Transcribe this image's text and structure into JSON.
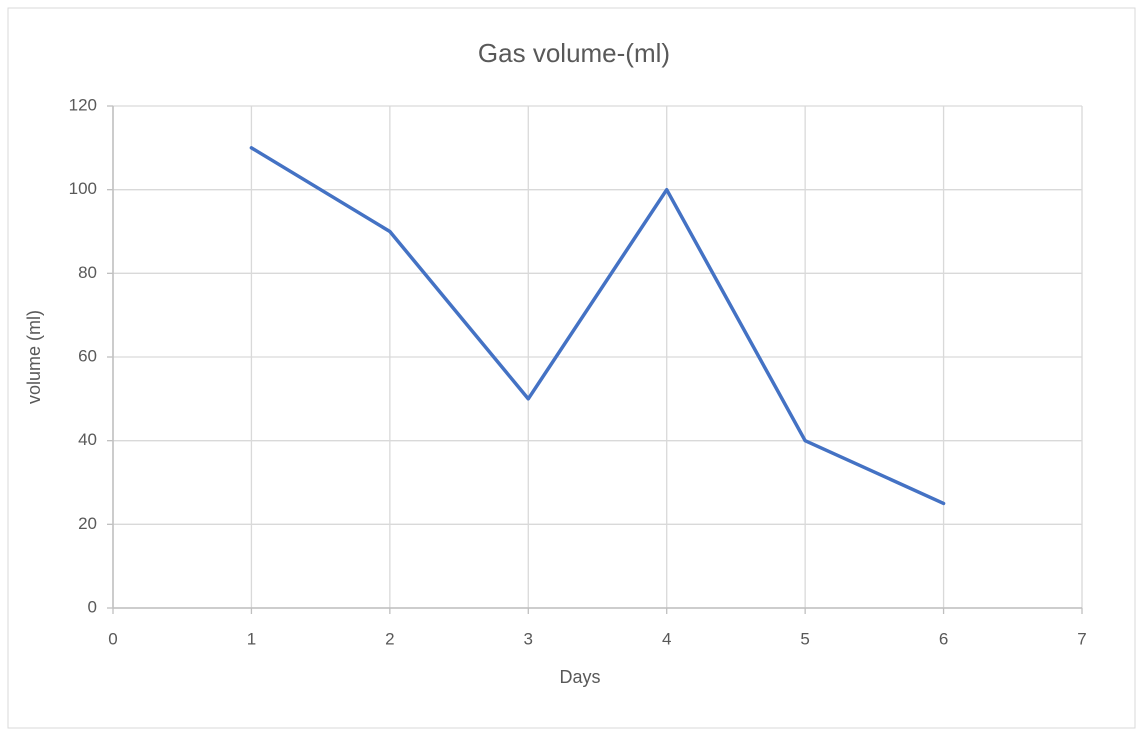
{
  "chart_data": {
    "type": "line",
    "title": "Gas volume-(ml)",
    "x_label": "Days",
    "y_label": "volume (ml)",
    "x": [
      1,
      2,
      3,
      4,
      5,
      6
    ],
    "values": [
      110,
      90,
      50,
      100,
      40,
      25
    ],
    "color": "#4472c4",
    "xlim": [
      0,
      7
    ],
    "xticks": [
      0,
      1,
      2,
      3,
      4,
      5,
      6,
      7
    ],
    "ylim": [
      0,
      120
    ],
    "yticks": [
      0,
      20,
      40,
      60,
      80,
      100,
      120
    ],
    "grid": true
  }
}
